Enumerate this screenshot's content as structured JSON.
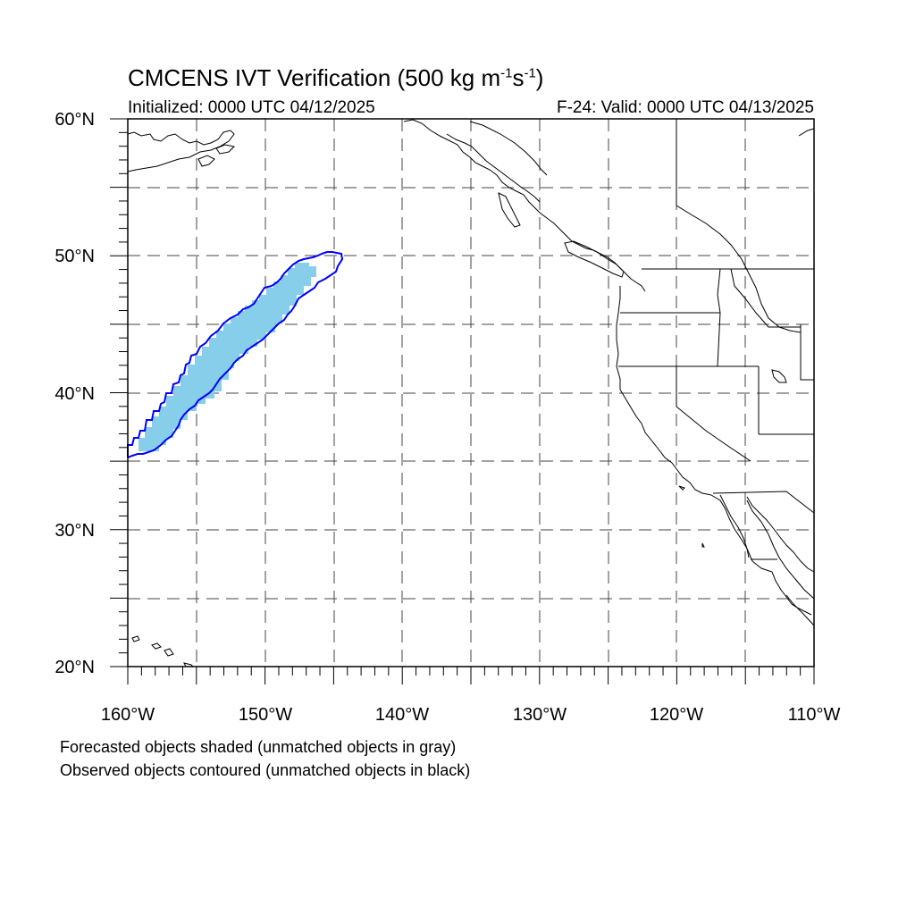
{
  "title": {
    "main": "CMCENS IVT Verification (500 kg m",
    "exp1": "-1",
    "mid": "s",
    "exp2": "-1",
    "end": ")"
  },
  "subtitle_left": "Initialized: 0000 UTC 04/12/2025",
  "subtitle_right": "F-24: Valid: 0000 UTC 04/13/2025",
  "notes": [
    "Forecasted objects shaded (unmatched objects in gray)",
    "Observed objects contoured (unmatched objects in black)"
  ],
  "map": {
    "lon_range": [
      -160,
      -110
    ],
    "lat_range": [
      20,
      60
    ],
    "grid_dashed": true,
    "grid_lon_step": 5,
    "grid_lat_step": 5,
    "x_tick_labels": [
      "160°W",
      "150°W",
      "140°W",
      "130°W",
      "120°W",
      "110°W"
    ],
    "y_tick_labels": [
      "20°N",
      "30°N",
      "40°N",
      "50°N",
      "60°N"
    ],
    "colors": {
      "forecast_fill": "#87CEEB",
      "observed_contour": "#0000FF",
      "coastline": "#000000"
    }
  }
}
